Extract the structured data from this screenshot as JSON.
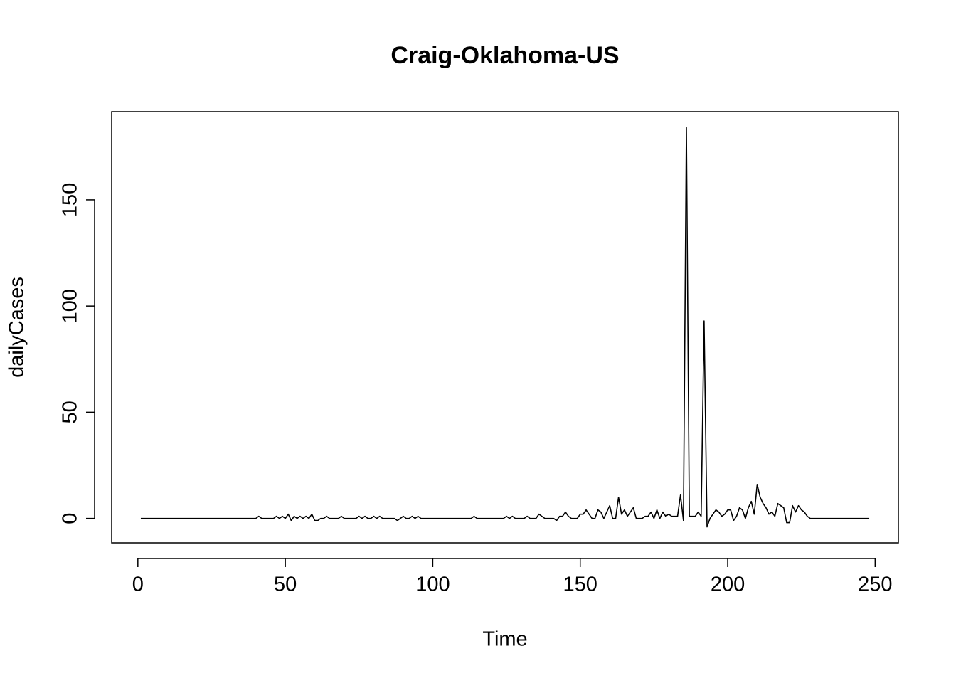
{
  "chart_data": {
    "type": "line",
    "title": "Craig-Oklahoma-US",
    "x_label": "Time",
    "y_label": "dailyCases",
    "x": [
      1,
      2,
      3,
      4,
      5,
      6,
      7,
      8,
      9,
      10,
      11,
      12,
      13,
      14,
      15,
      16,
      17,
      18,
      19,
      20,
      21,
      22,
      23,
      24,
      25,
      26,
      27,
      28,
      29,
      30,
      31,
      32,
      33,
      34,
      35,
      36,
      37,
      38,
      39,
      40,
      41,
      42,
      43,
      44,
      45,
      46,
      47,
      48,
      49,
      50,
      51,
      52,
      53,
      54,
      55,
      56,
      57,
      58,
      59,
      60,
      61,
      62,
      63,
      64,
      65,
      66,
      67,
      68,
      69,
      70,
      71,
      72,
      73,
      74,
      75,
      76,
      77,
      78,
      79,
      80,
      81,
      82,
      83,
      84,
      85,
      86,
      87,
      88,
      89,
      90,
      91,
      92,
      93,
      94,
      95,
      96,
      97,
      98,
      99,
      100,
      101,
      102,
      103,
      104,
      105,
      106,
      107,
      108,
      109,
      110,
      111,
      112,
      113,
      114,
      115,
      116,
      117,
      118,
      119,
      120,
      121,
      122,
      123,
      124,
      125,
      126,
      127,
      128,
      129,
      130,
      131,
      132,
      133,
      134,
      135,
      136,
      137,
      138,
      139,
      140,
      141,
      142,
      143,
      144,
      145,
      146,
      147,
      148,
      149,
      150,
      151,
      152,
      153,
      154,
      155,
      156,
      157,
      158,
      159,
      160,
      161,
      162,
      163,
      164,
      165,
      166,
      167,
      168,
      169,
      170,
      171,
      172,
      173,
      174,
      175,
      176,
      177,
      178,
      179,
      180,
      181,
      182,
      183,
      184,
      185,
      186,
      187,
      188,
      189,
      190,
      191,
      192,
      193,
      194,
      195,
      196,
      197,
      198,
      199,
      200,
      201,
      202,
      203,
      204,
      205,
      206,
      207,
      208,
      209,
      210,
      211,
      212,
      213,
      214,
      215,
      216,
      217,
      218,
      219,
      220,
      221,
      222,
      223,
      224,
      225,
      226,
      227,
      228,
      229,
      230,
      231,
      232,
      233,
      234,
      235,
      236,
      237,
      238,
      239,
      240,
      241,
      242,
      243,
      244,
      245,
      246,
      247,
      248
    ],
    "values": [
      0,
      0,
      0,
      0,
      0,
      0,
      0,
      0,
      0,
      0,
      0,
      0,
      0,
      0,
      0,
      0,
      0,
      0,
      0,
      0,
      0,
      0,
      0,
      0,
      0,
      0,
      0,
      0,
      0,
      0,
      0,
      0,
      0,
      0,
      0,
      0,
      0,
      0,
      0,
      0,
      1,
      0,
      0,
      0,
      0,
      0,
      1,
      0,
      1,
      0,
      2,
      -1,
      1,
      0,
      1,
      0,
      1,
      0,
      2,
      -1,
      -1,
      0,
      0,
      1,
      0,
      0,
      0,
      0,
      1,
      0,
      0,
      0,
      0,
      0,
      1,
      0,
      1,
      0,
      0,
      1,
      0,
      1,
      0,
      0,
      0,
      0,
      0,
      -1,
      0,
      1,
      0,
      0,
      1,
      0,
      1,
      0,
      0,
      0,
      0,
      0,
      0,
      0,
      0,
      0,
      0,
      0,
      0,
      0,
      0,
      0,
      0,
      0,
      0,
      1,
      0,
      0,
      0,
      0,
      0,
      0,
      0,
      0,
      0,
      0,
      1,
      0,
      1,
      0,
      0,
      0,
      0,
      1,
      0,
      0,
      0,
      2,
      1,
      0,
      0,
      0,
      0,
      -1,
      1,
      1,
      3,
      1,
      0,
      0,
      0,
      2,
      2,
      4,
      2,
      0,
      0,
      4,
      3,
      0,
      3,
      6,
      0,
      0,
      10,
      2,
      4,
      1,
      3,
      5,
      0,
      0,
      0,
      1,
      1,
      3,
      0,
      4,
      0,
      3,
      1,
      2,
      1,
      1,
      1,
      11,
      -1,
      184,
      1,
      1,
      1,
      3,
      1,
      93,
      -4,
      0,
      2,
      4,
      3,
      1,
      2,
      4,
      4,
      -1,
      1,
      5,
      4,
      0,
      5,
      8,
      2,
      16,
      10,
      7,
      5,
      2,
      3,
      1,
      7,
      6,
      5,
      -2,
      -2,
      6,
      3,
      6,
      4,
      3,
      1,
      0,
      0,
      0,
      0,
      0,
      0,
      0,
      0,
      0,
      0,
      0,
      0,
      0,
      0,
      0,
      0,
      0,
      0,
      0,
      0,
      0
    ],
    "color": "#000000",
    "xlim": [
      -8.88,
      257.88
    ],
    "ylim": [
      -11.52,
      191.52
    ],
    "xticks": [
      0,
      50,
      100,
      150,
      200,
      250
    ],
    "yticks": [
      0,
      50,
      100,
      150
    ]
  }
}
